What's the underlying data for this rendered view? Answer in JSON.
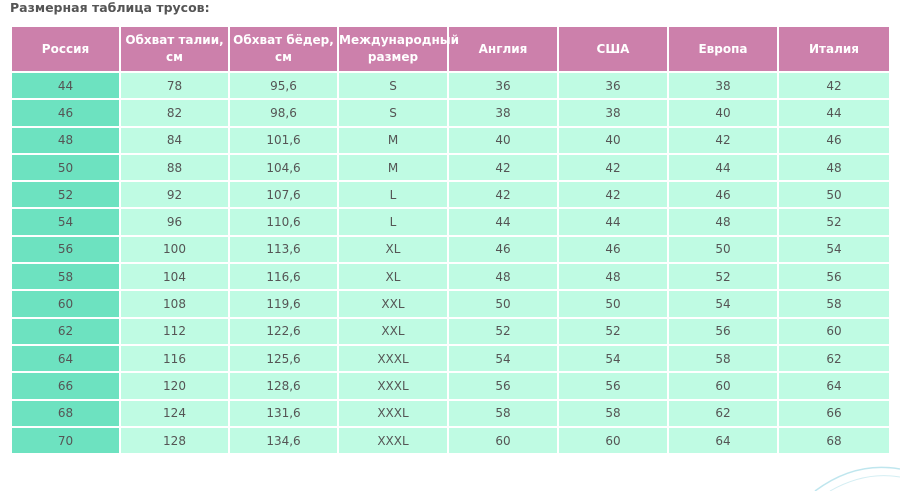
{
  "caption": "Размерная таблица трусов:",
  "table": {
    "headers": [
      "Россия",
      "Обхват талии, см",
      "Обхват бёдер, см",
      "Международный размер",
      "Англия",
      "США",
      "Европа",
      "Италия"
    ],
    "rows": [
      [
        "44",
        "78",
        "95,6",
        "S",
        "36",
        "36",
        "38",
        "42"
      ],
      [
        "46",
        "82",
        "98,6",
        "S",
        "38",
        "38",
        "40",
        "44"
      ],
      [
        "48",
        "84",
        "101,6",
        "M",
        "40",
        "40",
        "42",
        "46"
      ],
      [
        "50",
        "88",
        "104,6",
        "M",
        "42",
        "42",
        "44",
        "48"
      ],
      [
        "52",
        "92",
        "107,6",
        "L",
        "42",
        "42",
        "46",
        "50"
      ],
      [
        "54",
        "96",
        "110,6",
        "L",
        "44",
        "44",
        "48",
        "52"
      ],
      [
        "56",
        "100",
        "113,6",
        "XL",
        "46",
        "46",
        "50",
        "54"
      ],
      [
        "58",
        "104",
        "116,6",
        "XL",
        "48",
        "48",
        "52",
        "56"
      ],
      [
        "60",
        "108",
        "119,6",
        "XXL",
        "50",
        "50",
        "54",
        "58"
      ],
      [
        "62",
        "112",
        "122,6",
        "XXL",
        "52",
        "52",
        "56",
        "60"
      ],
      [
        "64",
        "116",
        "125,6",
        "XXXL",
        "54",
        "54",
        "58",
        "62"
      ],
      [
        "66",
        "120",
        "128,6",
        "XXXL",
        "56",
        "56",
        "60",
        "64"
      ],
      [
        "68",
        "124",
        "131,6",
        "XXXL",
        "58",
        "58",
        "62",
        "66"
      ],
      [
        "70",
        "128",
        "134,6",
        "XXXL",
        "60",
        "60",
        "64",
        "68"
      ]
    ]
  },
  "colors": {
    "header_bg": "#cc80ab",
    "first_column_bg": "#6de2c0",
    "cell_bg": "#bffbe3",
    "text": "#555555"
  }
}
